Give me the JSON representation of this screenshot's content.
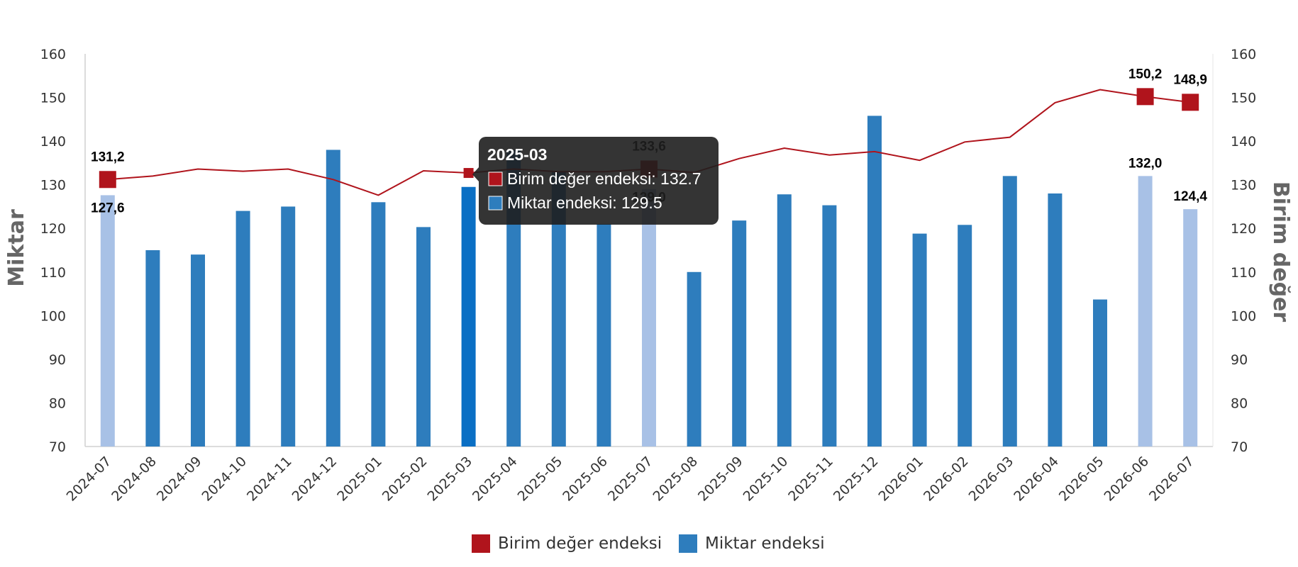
{
  "chart_data": {
    "type": "bar",
    "categories": [
      "2024-07",
      "2024-08",
      "2024-09",
      "2024-10",
      "2024-11",
      "2024-12",
      "2025-01",
      "2025-02",
      "2025-03",
      "2025-04",
      "2025-05",
      "2025-06",
      "2025-07",
      "2025-08",
      "2025-09",
      "2025-10",
      "2025-11",
      "2025-12",
      "2026-01",
      "2026-02",
      "2026-03",
      "2026-04",
      "2026-05",
      "2026-06",
      "2026-07"
    ],
    "series": [
      {
        "name": "Miktar endeksi",
        "type": "bar",
        "axis": "left",
        "color": "#2e7dbd",
        "highlight_color": "#a8c1e6",
        "active_color": "#0a6fc4",
        "values": [
          127.6,
          115.0,
          114.0,
          124.0,
          125.0,
          138.0,
          126.0,
          120.3,
          129.5,
          138.0,
          133.0,
          121.0,
          129.0,
          110.0,
          121.8,
          127.8,
          125.3,
          145.8,
          118.8,
          120.8,
          132.0,
          128.0,
          103.7,
          132.0,
          124.4
        ],
        "highlighted": [
          0,
          12,
          23,
          24
        ],
        "labels": {
          "0": "127,6",
          "12": "129,0",
          "23": "132,0",
          "24": "124,4"
        }
      },
      {
        "name": "Birim değer endeksi",
        "type": "line",
        "axis": "right",
        "color": "#b0141c",
        "values": [
          131.2,
          132.0,
          133.6,
          133.1,
          133.6,
          131.2,
          127.6,
          133.2,
          132.7,
          133.6,
          133.0,
          133.0,
          133.6,
          132.8,
          136.0,
          138.4,
          136.8,
          137.6,
          135.6,
          139.8,
          140.9,
          148.8,
          151.8,
          150.2,
          148.9
        ],
        "highlighted": [
          0,
          12,
          23,
          24
        ],
        "labels": {
          "0": "131,2",
          "12": "133,6",
          "23": "150,2",
          "24": "148,9"
        }
      }
    ],
    "y_left": {
      "label": "Miktar",
      "min": 70,
      "max": 160,
      "ticks": [
        70,
        80,
        90,
        100,
        110,
        120,
        130,
        140,
        150,
        160
      ]
    },
    "y_right": {
      "label": "Birim değer",
      "min": 70,
      "max": 160,
      "ticks": [
        70,
        80,
        90,
        100,
        110,
        120,
        130,
        140,
        150,
        160
      ]
    },
    "legend": {
      "position": "bottom",
      "items": [
        "Birim değer endeksi",
        "Miktar endeksi"
      ]
    },
    "tooltip": {
      "category_index": 8,
      "title": "2025-03",
      "lines": [
        "Birim değer endeksi: 132.7",
        "Miktar endeksi: 129.5"
      ]
    },
    "grid": false
  }
}
